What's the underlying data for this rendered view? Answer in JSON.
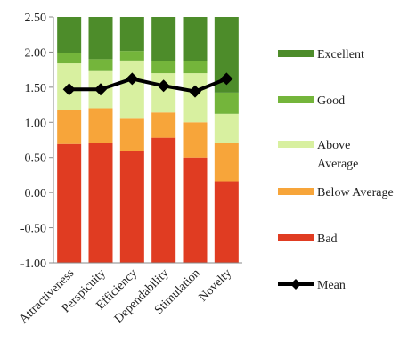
{
  "chart_data": {
    "type": "bar",
    "stacked": true,
    "categories": [
      "Attractiveness",
      "Perspicuity",
      "Efficiency",
      "Dependability",
      "Stimulation",
      "Novelty"
    ],
    "ylim": [
      -1.0,
      2.5
    ],
    "yticks": [
      "2.50",
      "2.00",
      "1.50",
      "1.00",
      "0.50",
      "0.00",
      "-0.50",
      "-1.00"
    ],
    "ytick_values": [
      2.5,
      2.0,
      1.5,
      1.0,
      0.5,
      0.0,
      -0.5,
      -1.0
    ],
    "grid": false,
    "legend_position": "right",
    "boundaries": {
      "bad_top": [
        0.69,
        0.71,
        0.59,
        0.78,
        0.5,
        0.16
      ],
      "below_average_top": [
        1.18,
        1.2,
        1.05,
        1.14,
        1.0,
        0.7
      ],
      "above_average_top": [
        1.84,
        1.73,
        1.88,
        1.7,
        1.7,
        1.12
      ]
    },
    "series": [
      {
        "name": "Excellent",
        "color": "#4d8c2a"
      },
      {
        "name": "Good",
        "color": "#74b53b"
      },
      {
        "name": "Above Average",
        "color": "#d8f0a0"
      },
      {
        "name": "Below Average",
        "color": "#f7a53a"
      },
      {
        "name": "Bad",
        "color": "#e03c22"
      }
    ],
    "mean": {
      "name": "Mean",
      "color": "#000000",
      "values": [
        1.47,
        1.47,
        1.62,
        1.52,
        1.44,
        1.62
      ]
    }
  },
  "legend": {
    "excellent": "Excellent",
    "good": "Good",
    "above_average_line1": "Above",
    "above_average_line2": "Average",
    "below_average": "Below Average",
    "bad": "Bad",
    "mean": "Mean"
  }
}
